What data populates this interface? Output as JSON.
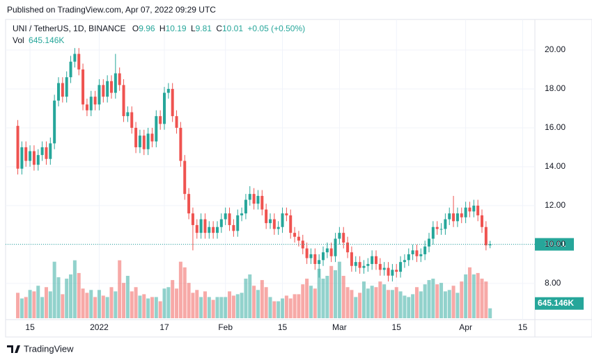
{
  "header": {
    "published": "Published on TradingView.com, Apr 07, 2022 09:29 UTC",
    "footer_logo": "TradingView"
  },
  "chart_data": {
    "type": "candlestick",
    "legend": {
      "symbol": "UNI / TetherUS, 1D, BINANCE",
      "open_label": "O",
      "high_label": "H",
      "low_label": "L",
      "close_label": "C",
      "change": "+0.05",
      "change_pct": "(+0.50%)",
      "volume_label": "Vol"
    },
    "up_color": "#26a69a",
    "down_color": "#ef5350",
    "x": [
      "2021-12-12",
      "2021-12-13",
      "2021-12-14",
      "2021-12-15",
      "2021-12-16",
      "2021-12-17",
      "2021-12-18",
      "2021-12-19",
      "2021-12-20",
      "2021-12-21",
      "2021-12-22",
      "2021-12-23",
      "2021-12-24",
      "2021-12-25",
      "2021-12-26",
      "2021-12-27",
      "2021-12-28",
      "2021-12-29",
      "2021-12-30",
      "2021-12-31",
      "2022-01-01",
      "2022-01-02",
      "2022-01-03",
      "2022-01-04",
      "2022-01-05",
      "2022-01-06",
      "2022-01-07",
      "2022-01-08",
      "2022-01-09",
      "2022-01-10",
      "2022-01-11",
      "2022-01-12",
      "2022-01-13",
      "2022-01-14",
      "2022-01-15",
      "2022-01-16",
      "2022-01-17",
      "2022-01-18",
      "2022-01-19",
      "2022-01-20",
      "2022-01-21",
      "2022-01-22",
      "2022-01-23",
      "2022-01-24",
      "2022-01-25",
      "2022-01-26",
      "2022-01-27",
      "2022-01-28",
      "2022-01-29",
      "2022-01-30",
      "2022-01-31",
      "2022-02-01",
      "2022-02-02",
      "2022-02-03",
      "2022-02-04",
      "2022-02-05",
      "2022-02-06",
      "2022-02-07",
      "2022-02-08",
      "2022-02-09",
      "2022-02-10",
      "2022-02-11",
      "2022-02-12",
      "2022-02-13",
      "2022-02-14",
      "2022-02-15",
      "2022-02-16",
      "2022-02-17",
      "2022-02-18",
      "2022-02-19",
      "2022-02-20",
      "2022-02-21",
      "2022-02-22",
      "2022-02-23",
      "2022-02-24",
      "2022-02-25",
      "2022-02-26",
      "2022-02-27",
      "2022-02-28",
      "2022-03-01",
      "2022-03-02",
      "2022-03-03",
      "2022-03-04",
      "2022-03-05",
      "2022-03-06",
      "2022-03-07",
      "2022-03-08",
      "2022-03-09",
      "2022-03-10",
      "2022-03-11",
      "2022-03-12",
      "2022-03-13",
      "2022-03-14",
      "2022-03-15",
      "2022-03-16",
      "2022-03-17",
      "2022-03-18",
      "2022-03-19",
      "2022-03-20",
      "2022-03-21",
      "2022-03-22",
      "2022-03-23",
      "2022-03-24",
      "2022-03-25",
      "2022-03-26",
      "2022-03-27",
      "2022-03-28",
      "2022-03-29",
      "2022-03-30",
      "2022-03-31",
      "2022-04-01",
      "2022-04-02",
      "2022-04-03",
      "2022-04-04",
      "2022-04-05",
      "2022-04-06",
      "2022-04-07"
    ],
    "open": [
      16.1,
      13.9,
      15.0,
      14.3,
      14.8,
      14.1,
      14.6,
      15.0,
      14.4,
      15.2,
      17.4,
      18.3,
      17.6,
      18.6,
      19.4,
      19.8,
      19.0,
      17.2,
      16.9,
      17.6,
      17.2,
      18.2,
      17.6,
      18.4,
      17.8,
      18.8,
      18.2,
      16.6,
      16.8,
      16.0,
      15.0,
      15.6,
      14.9,
      15.7,
      15.3,
      16.6,
      16.2,
      17.8,
      18.0,
      16.6,
      16.0,
      14.3,
      12.6,
      11.6,
      11.0,
      10.6,
      11.3,
      10.6,
      10.9,
      10.6,
      10.9,
      11.3,
      11.6,
      11.0,
      10.7,
      11.5,
      11.6,
      12.3,
      12.6,
      12.1,
      12.5,
      11.8,
      11.1,
      11.3,
      10.8,
      10.9,
      11.6,
      11.5,
      10.6,
      10.4,
      10.2,
      9.8,
      9.3,
      9.5,
      9.0,
      9.2,
      9.6,
      9.8,
      9.4,
      10.3,
      10.6,
      10.1,
      9.6,
      8.9,
      9.1,
      8.8,
      8.9,
      9.0,
      9.4,
      9.0,
      8.7,
      8.8,
      8.4,
      8.7,
      8.6,
      9.1,
      9.2,
      9.5,
      9.7,
      9.4,
      9.5,
      9.9,
      10.3,
      10.9,
      10.8,
      10.8,
      11.3,
      11.6,
      11.2,
      11.6,
      11.4,
      11.9,
      11.7,
      12.0,
      11.5,
      10.9,
      9.96
    ],
    "high": [
      16.4,
      15.3,
      15.3,
      15.1,
      15.1,
      14.9,
      15.3,
      15.3,
      15.5,
      17.7,
      18.6,
      18.6,
      18.9,
      19.7,
      20.1,
      20.1,
      19.3,
      17.5,
      17.9,
      17.9,
      18.5,
      18.5,
      18.7,
      18.7,
      19.8,
      19.1,
      18.5,
      17.1,
      17.1,
      16.3,
      15.9,
      15.9,
      16.0,
      16.0,
      16.9,
      16.9,
      18.1,
      18.3,
      18.3,
      16.9,
      16.3,
      14.6,
      12.9,
      11.9,
      11.3,
      11.6,
      11.6,
      11.2,
      11.2,
      11.2,
      11.6,
      11.9,
      11.9,
      11.3,
      11.8,
      11.9,
      12.6,
      13.0,
      12.9,
      12.8,
      12.8,
      12.1,
      11.6,
      11.6,
      11.2,
      11.9,
      11.9,
      11.8,
      10.9,
      10.7,
      10.5,
      10.1,
      9.8,
      9.8,
      9.5,
      9.9,
      10.1,
      10.1,
      10.6,
      10.9,
      10.9,
      10.4,
      9.9,
      9.4,
      9.4,
      9.2,
      9.3,
      9.7,
      9.7,
      9.3,
      9.1,
      9.1,
      9.0,
      9.0,
      9.4,
      9.5,
      9.8,
      10.0,
      10.0,
      9.8,
      10.2,
      10.6,
      11.2,
      11.2,
      11.1,
      11.6,
      11.9,
      12.5,
      11.9,
      11.9,
      12.2,
      12.2,
      12.3,
      12.3,
      11.8,
      11.2,
      10.19
    ],
    "low": [
      13.6,
      13.6,
      14.0,
      14.0,
      13.8,
      13.8,
      14.3,
      14.1,
      14.1,
      14.9,
      17.1,
      17.3,
      17.3,
      18.3,
      19.1,
      18.7,
      16.9,
      16.6,
      16.6,
      16.9,
      16.9,
      17.3,
      17.3,
      17.5,
      17.5,
      17.9,
      16.3,
      16.3,
      15.7,
      14.7,
      14.7,
      14.6,
      14.6,
      15.0,
      15.0,
      15.9,
      15.9,
      17.5,
      16.3,
      15.7,
      14.0,
      12.3,
      11.3,
      9.7,
      10.3,
      10.3,
      10.3,
      10.3,
      10.3,
      10.3,
      10.6,
      11.0,
      10.7,
      10.4,
      10.4,
      11.2,
      11.3,
      12.0,
      11.8,
      11.8,
      11.5,
      10.8,
      10.8,
      10.5,
      10.5,
      10.6,
      11.2,
      10.3,
      10.1,
      9.9,
      9.5,
      9.0,
      9.0,
      8.7,
      8.3,
      8.9,
      9.3,
      9.1,
      9.1,
      10.0,
      9.8,
      9.3,
      8.6,
      8.6,
      8.5,
      8.5,
      8.6,
      8.7,
      8.7,
      8.4,
      8.4,
      8.1,
      8.1,
      8.3,
      8.3,
      8.8,
      8.9,
      9.2,
      9.1,
      9.1,
      9.2,
      9.6,
      10.0,
      10.5,
      10.5,
      10.5,
      11.0,
      10.9,
      10.9,
      11.1,
      11.1,
      11.4,
      11.4,
      11.2,
      10.6,
      9.7,
      9.81
    ],
    "close": [
      13.9,
      15.0,
      14.3,
      14.8,
      14.1,
      14.6,
      15.0,
      14.4,
      15.2,
      17.4,
      18.3,
      17.6,
      18.6,
      19.4,
      19.8,
      19.0,
      17.2,
      16.9,
      17.6,
      17.2,
      18.2,
      17.6,
      18.4,
      17.8,
      18.8,
      18.2,
      16.6,
      16.8,
      16.0,
      15.0,
      15.6,
      14.9,
      15.7,
      15.3,
      16.6,
      16.2,
      17.8,
      18.0,
      16.6,
      16.0,
      14.3,
      12.6,
      11.6,
      11.0,
      10.6,
      11.3,
      10.6,
      10.9,
      10.6,
      10.9,
      11.3,
      11.6,
      11.0,
      10.7,
      11.5,
      11.6,
      12.3,
      12.6,
      12.1,
      12.5,
      11.8,
      11.1,
      11.3,
      10.8,
      10.9,
      11.6,
      11.5,
      10.6,
      10.4,
      10.2,
      9.8,
      9.3,
      9.5,
      9.0,
      9.2,
      9.6,
      9.8,
      9.4,
      10.3,
      10.6,
      10.1,
      9.6,
      8.9,
      9.1,
      8.8,
      8.9,
      9.0,
      9.4,
      9.0,
      8.7,
      8.8,
      8.4,
      8.7,
      8.6,
      9.1,
      9.2,
      9.5,
      9.7,
      9.4,
      9.5,
      9.9,
      10.3,
      10.9,
      10.8,
      10.8,
      11.3,
      11.6,
      11.2,
      11.6,
      11.4,
      11.9,
      11.7,
      12.0,
      11.5,
      10.9,
      9.96,
      10.01
    ],
    "volume": [
      1656,
      1288,
      1380,
      1840,
      1748,
      2116,
      1380,
      2024,
      1748,
      3680,
      2668,
      1564,
      2576,
      2852,
      3772,
      2944,
      1932,
      1656,
      1840,
      1380,
      1840,
      1472,
      1380,
      2024,
      1748,
      3772,
      2300,
      2760,
      1748,
      2024,
      1472,
      1564,
      1288,
      1380,
      1380,
      1104,
      1932,
      2024,
      2484,
      1932,
      3680,
      3312,
      2300,
      1656,
      1840,
      1380,
      1748,
      1380,
      1196,
      1380,
      1380,
      1380,
      1748,
      1472,
      1564,
      1656,
      2576,
      2852,
      2116,
      1840,
      2484,
      2024,
      1380,
      1104,
      1104,
      1288,
      1472,
      1288,
      1564,
      1564,
      2208,
      2576,
      2116,
      1932,
      3220,
      2576,
      2760,
      3404,
      3128,
      3680,
      2760,
      2024,
      1840,
      1380,
      1656,
      2392,
      1932,
      2116,
      2024,
      2392,
      2208,
      1840,
      1840,
      2024,
      1748,
      1472,
      1380,
      1564,
      2024,
      1748,
      2208,
      2484,
      2576,
      2208,
      2300,
      1748,
      1840,
      2116,
      1656,
      2392,
      2852,
      3312,
      2852,
      2944,
      2576,
      2392,
      645.146
    ],
    "last_volume_label": "645.146K",
    "volume_lim": [
      0,
      3800
    ],
    "ylim": [
      6.14,
      21.57
    ],
    "yticks": [
      {
        "value": 8,
        "label": "8.00"
      },
      {
        "value": 10,
        "label": "10.00"
      },
      {
        "value": 12,
        "label": "12.00"
      },
      {
        "value": 14,
        "label": "14.00"
      },
      {
        "value": 16,
        "label": "16.00"
      },
      {
        "value": 18,
        "label": "18.00"
      },
      {
        "value": 20,
        "label": "20.00"
      }
    ],
    "xlim": [
      "2021-12-09",
      "2022-04-18"
    ],
    "xticks": [
      {
        "value": "2021-12-15",
        "label": "15"
      },
      {
        "value": "2022-01-01",
        "label": "2022"
      },
      {
        "value": "2022-01-17",
        "label": "17"
      },
      {
        "value": "2022-02-01",
        "label": "Feb"
      },
      {
        "value": "2022-02-15",
        "label": "15"
      },
      {
        "value": "2022-03-01",
        "label": "Mar"
      },
      {
        "value": "2022-03-15",
        "label": "15"
      },
      {
        "value": "2022-04-01",
        "label": "Apr"
      },
      {
        "value": "2022-04-15",
        "label": "15"
      }
    ],
    "grid": true
  }
}
